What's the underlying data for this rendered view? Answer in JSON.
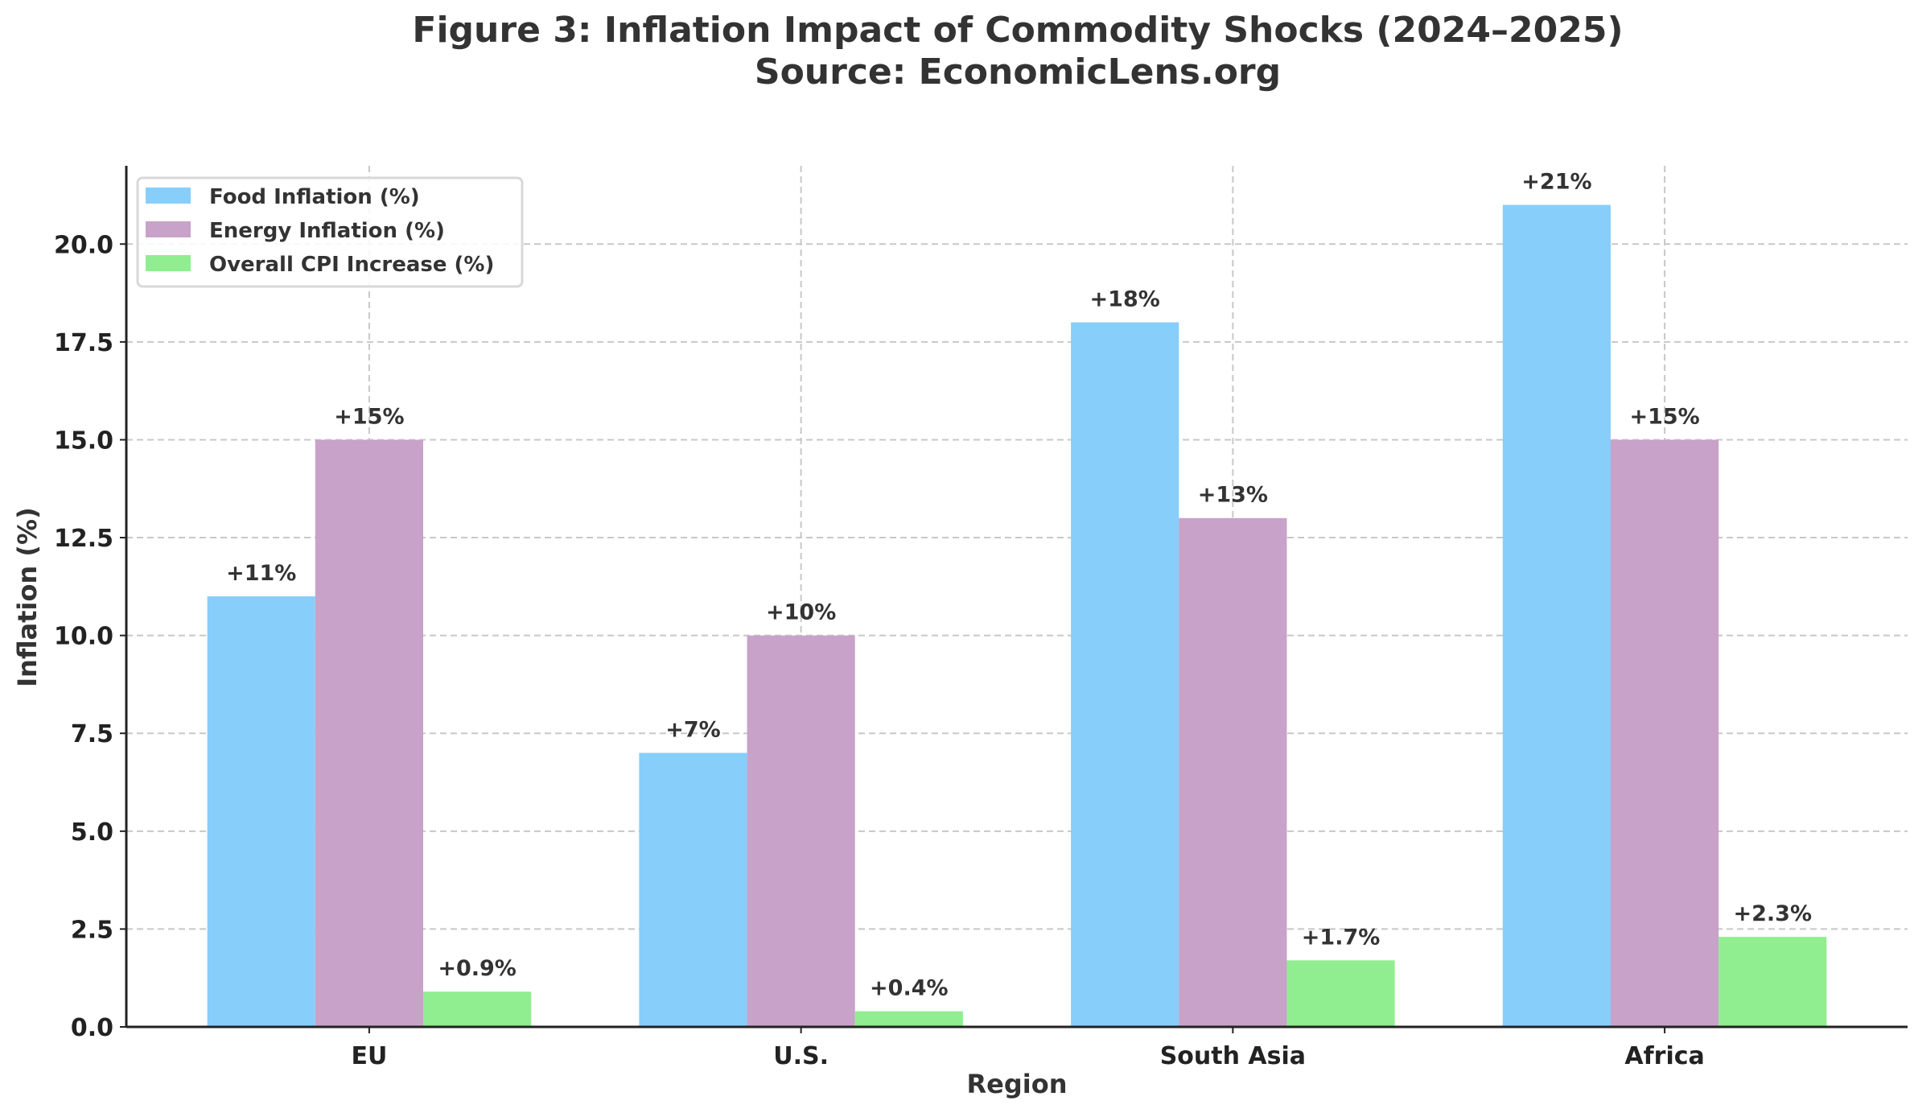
{
  "chart_data": {
    "type": "bar",
    "title": "Figure 3: Inflation Impact of Commodity Shocks (2024–2025)",
    "subtitle": "Source: EconomicLens.org",
    "xlabel": "Region",
    "ylabel": "Inflation (%)",
    "categories": [
      "EU",
      "U.S.",
      "South Asia",
      "Africa"
    ],
    "ylim": [
      0,
      22
    ],
    "yticks": [
      "0.0",
      "2.5",
      "5.0",
      "7.5",
      "10.0",
      "12.5",
      "15.0",
      "17.5",
      "20.0"
    ],
    "grid": true,
    "legend_position": "top-left",
    "series": [
      {
        "name": "Food Inflation (%)",
        "color": "#87CEFA",
        "values": [
          11,
          7,
          18,
          21
        ],
        "labels": [
          "+11%",
          "+7%",
          "+18%",
          "+21%"
        ]
      },
      {
        "name": "Energy Inflation (%)",
        "color": "#C8A2C8",
        "values": [
          15,
          10,
          13,
          15
        ],
        "labels": [
          "+15%",
          "+10%",
          "+13%",
          "+15%"
        ]
      },
      {
        "name": "Overall CPI Increase (%)",
        "color": "#90EE90",
        "values": [
          0.9,
          0.4,
          1.7,
          2.3
        ],
        "labels": [
          "+0.9%",
          "+0.4%",
          "+1.7%",
          "+2.3%"
        ]
      }
    ]
  }
}
